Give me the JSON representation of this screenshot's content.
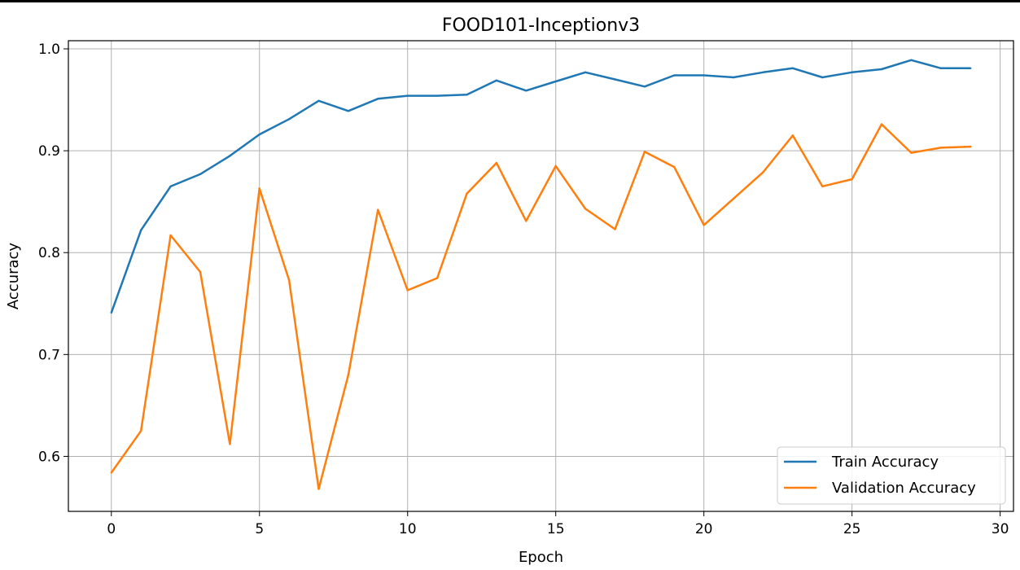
{
  "chart_data": {
    "type": "line",
    "title": "FOOD101-Inceptionv3",
    "xlabel": "Epoch",
    "ylabel": "Accuracy",
    "xlim": [
      -1.45,
      30.45
    ],
    "ylim": [
      0.546,
      1.008
    ],
    "x_ticks": [
      0,
      5,
      10,
      15,
      20,
      25,
      30
    ],
    "y_ticks": [
      0.6,
      0.7,
      0.8,
      0.9,
      1.0
    ],
    "grid": true,
    "legend_position": "lower-right",
    "x": [
      0,
      1,
      2,
      3,
      4,
      5,
      6,
      7,
      8,
      9,
      10,
      11,
      12,
      13,
      14,
      15,
      16,
      17,
      18,
      19,
      20,
      21,
      22,
      23,
      24,
      25,
      26,
      27,
      28,
      29
    ],
    "series": [
      {
        "name": "Train Accuracy",
        "color": "#1f77b4",
        "values": [
          0.741,
          0.822,
          0.865,
          0.877,
          0.895,
          0.916,
          0.931,
          0.949,
          0.939,
          0.951,
          0.954,
          0.954,
          0.955,
          0.969,
          0.959,
          0.968,
          0.977,
          0.97,
          0.963,
          0.974,
          0.974,
          0.972,
          0.977,
          0.981,
          0.972,
          0.977,
          0.98,
          0.989,
          0.981,
          0.981
        ]
      },
      {
        "name": "Validation Accuracy",
        "color": "#ff7f0e",
        "values": [
          0.584,
          0.625,
          0.817,
          0.781,
          0.612,
          0.863,
          0.773,
          0.568,
          0.68,
          0.842,
          0.763,
          0.775,
          0.858,
          0.888,
          0.831,
          0.885,
          0.843,
          0.823,
          0.899,
          0.884,
          0.827,
          0.853,
          0.879,
          0.915,
          0.865,
          0.872,
          0.926,
          0.898,
          0.903,
          0.904
        ]
      }
    ]
  }
}
